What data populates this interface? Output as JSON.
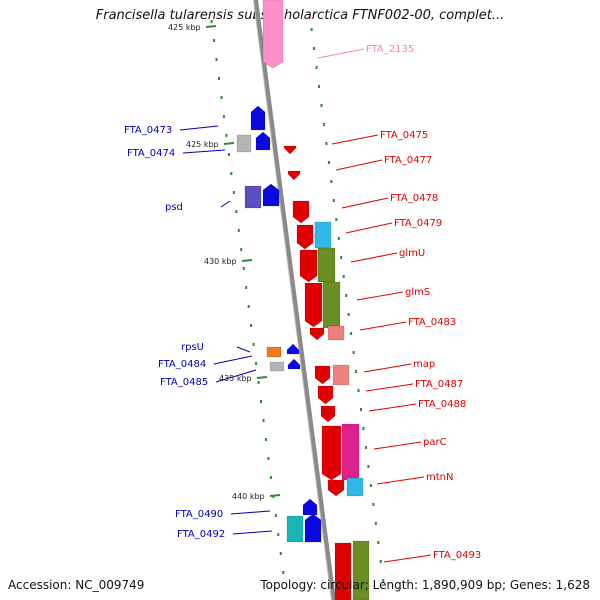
{
  "title": "Francisella tularensis subsp. holarctica FTNF002-00, complet...",
  "footer": {
    "accession": "Accession: NC_009749",
    "summary": "Topology: circular; Length: 1,890,909 bp; Genes: 1,628"
  },
  "colors": {
    "backbone": "#8a8a8a",
    "tick": "#2e8b2e",
    "label_right": "#e00000",
    "label_left": "#0000b4",
    "label_pink": "#ff80c0"
  },
  "scale_labels": [
    {
      "text": "425 kbp"
    },
    {
      "text": "425 kbp"
    },
    {
      "text": "430 kbp"
    },
    {
      "text": "435 kbp"
    },
    {
      "text": "440 kbp"
    }
  ],
  "gene_labels": [
    {
      "name": "FTA_2135",
      "side": "right",
      "color": "pink"
    },
    {
      "name": "FTA_0475",
      "side": "right",
      "color": "red"
    },
    {
      "name": "FTA_0477",
      "side": "right",
      "color": "red"
    },
    {
      "name": "FTA_0478",
      "side": "right",
      "color": "red"
    },
    {
      "name": "FTA_0479",
      "side": "right",
      "color": "red"
    },
    {
      "name": "glmU",
      "side": "right",
      "color": "red"
    },
    {
      "name": "glmS",
      "side": "right",
      "color": "red"
    },
    {
      "name": "FTA_0483",
      "side": "right",
      "color": "red"
    },
    {
      "name": "map",
      "side": "right",
      "color": "red"
    },
    {
      "name": "FTA_0487",
      "side": "right",
      "color": "red"
    },
    {
      "name": "FTA_0488",
      "side": "right",
      "color": "red"
    },
    {
      "name": "parC",
      "side": "right",
      "color": "red"
    },
    {
      "name": "mtnN",
      "side": "right",
      "color": "red"
    },
    {
      "name": "FTA_0493",
      "side": "right",
      "color": "red"
    },
    {
      "name": "FTA_0473",
      "side": "left",
      "color": "blue"
    },
    {
      "name": "FTA_0474",
      "side": "left",
      "color": "blue"
    },
    {
      "name": "psd",
      "side": "left",
      "color": "blue"
    },
    {
      "name": "rpsU",
      "side": "left",
      "color": "blue"
    },
    {
      "name": "FTA_0484",
      "side": "left",
      "color": "blue"
    },
    {
      "name": "FTA_0485",
      "side": "left",
      "color": "blue"
    },
    {
      "name": "FTA_0490",
      "side": "left",
      "color": "blue"
    },
    {
      "name": "FTA_0492",
      "side": "left",
      "color": "blue"
    }
  ]
}
